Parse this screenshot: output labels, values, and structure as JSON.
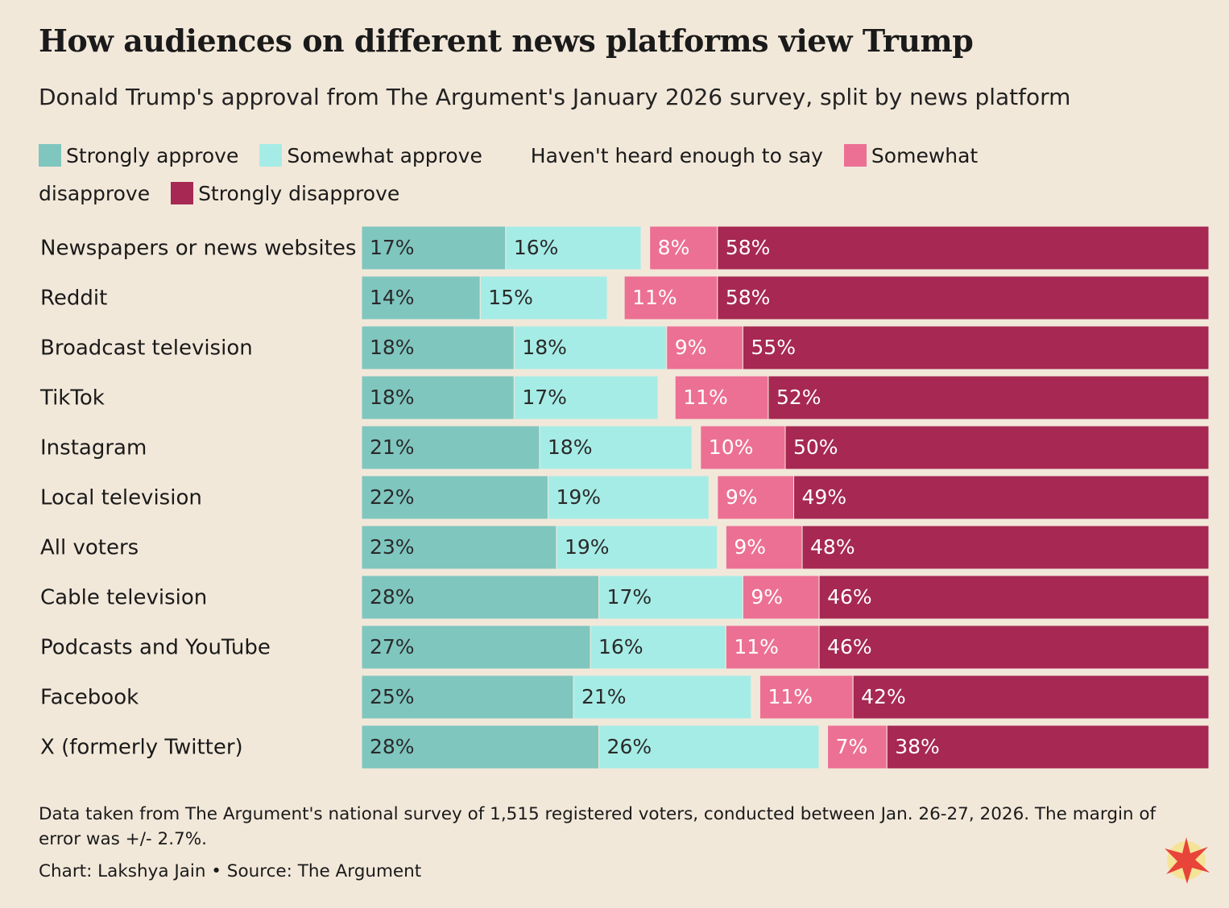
{
  "chart_data": {
    "type": "stacked-bar-horizontal",
    "title": "How audiences on different news platforms view Trump",
    "subtitle": "Donald Trump's approval from The Argument's January 2026 survey, split by news platform",
    "categories": [
      "Newspapers or news websites",
      "Reddit",
      "Broadcast television",
      "TikTok",
      "Instagram",
      "Local television",
      "All voters",
      "Cable television",
      "Podcasts and YouTube",
      "Facebook",
      "X (formerly Twitter)"
    ],
    "xlim": [
      0,
      100
    ],
    "series": [
      {
        "name": "Strongly approve",
        "color": "#7fc6bf",
        "values": [
          17,
          14,
          18,
          18,
          21,
          22,
          23,
          28,
          27,
          25,
          28
        ],
        "value_labels": [
          "17%",
          "14%",
          "18%",
          "18%",
          "21%",
          "22%",
          "23%",
          "28%",
          "27%",
          "25%",
          "28%"
        ]
      },
      {
        "name": "Somewhat approve",
        "color": "#a6ece6",
        "values": [
          16,
          15,
          18,
          17,
          18,
          19,
          19,
          17,
          16,
          21,
          26
        ],
        "value_labels": [
          "16%",
          "15%",
          "18%",
          "17%",
          "18%",
          "19%",
          "19%",
          "17%",
          "16%",
          "21%",
          "26%"
        ]
      },
      {
        "name": "Haven't heard enough to say",
        "color": "#f2e8da",
        "values": [
          1,
          2,
          0,
          2,
          1,
          1,
          1,
          0,
          0,
          1,
          1
        ]
      },
      {
        "name": "Somewhat disapprove",
        "color": "#ec7094",
        "values": [
          8,
          11,
          9,
          11,
          10,
          9,
          9,
          9,
          11,
          11,
          7
        ],
        "value_labels": [
          "8%",
          "11%",
          "9%",
          "11%",
          "10%",
          "9%",
          "9%",
          "9%",
          "11%",
          "11%",
          "7%"
        ]
      },
      {
        "name": "Strongly disapprove",
        "color": "#a62853",
        "values": [
          58,
          58,
          55,
          52,
          50,
          49,
          48,
          46,
          46,
          42,
          38
        ],
        "value_labels": [
          "58%",
          "58%",
          "55%",
          "52%",
          "50%",
          "49%",
          "48%",
          "46%",
          "46%",
          "42%",
          "38%"
        ]
      }
    ],
    "note": "Data taken from The Argument's national survey of 1,515 registered voters, conducted between Jan. 26-27, 2026. The margin of error was +/- 2.7%.",
    "credit": "Chart: Lakshya Jain • Source: The Argument"
  }
}
